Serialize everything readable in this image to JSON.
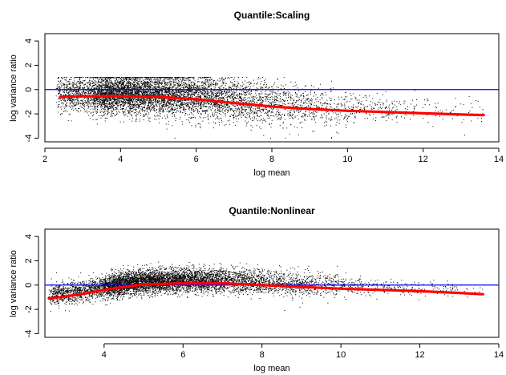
{
  "chart_data": [
    {
      "type": "scatter",
      "title": "Quantile:Scaling",
      "xlabel": "log mean",
      "ylabel": "log variance ratio",
      "xlim": [
        2.0,
        14.0
      ],
      "ylim": [
        -4.3,
        4.6
      ],
      "xticks": [
        2,
        4,
        6,
        8,
        10,
        12,
        14
      ],
      "yticks": [
        -4,
        -2,
        0,
        2,
        4
      ],
      "grid": false,
      "reference_line": {
        "y": 0,
        "color": "#0000ff"
      },
      "point_color": "#000000",
      "point_cloud": {
        "approx_points": 7000,
        "x_range": [
          2.3,
          13.6
        ],
        "density_peak_x": 4.3,
        "center_y": -0.5,
        "spread_y": 0.8,
        "y_max_observed": 1.0,
        "y_min_observed": -4.0
      },
      "trend": {
        "name": "loess fit",
        "color": "#ff0000",
        "x": [
          2.4,
          3.0,
          4.0,
          5.0,
          6.0,
          7.0,
          8.0,
          9.0,
          10.0,
          11.0,
          12.0,
          13.0,
          13.6
        ],
        "y": [
          -0.6,
          -0.55,
          -0.55,
          -0.6,
          -0.8,
          -1.1,
          -1.4,
          -1.6,
          -1.75,
          -1.85,
          -1.95,
          -2.05,
          -2.1
        ]
      }
    },
    {
      "type": "scatter",
      "title": "Quantile:Nonlinear",
      "xlabel": "log mean",
      "ylabel": "log variance ratio",
      "xlim": [
        2.5,
        14.0
      ],
      "ylim": [
        -4.3,
        4.6
      ],
      "xticks": [
        4,
        6,
        8,
        10,
        12,
        14
      ],
      "yticks": [
        -4,
        -2,
        0,
        2,
        4
      ],
      "grid": false,
      "reference_line": {
        "y": 0,
        "color": "#0000ff"
      },
      "point_color": "#000000",
      "point_cloud": {
        "approx_points": 7000,
        "x_range": [
          2.6,
          13.6
        ],
        "density_peak_x": 5.5,
        "center_y": 0.0,
        "spread_y": 0.45,
        "y_max_observed": 1.9,
        "y_min_observed": -3.3
      },
      "trend": {
        "name": "loess fit",
        "color": "#ff0000",
        "x": [
          2.6,
          3.0,
          3.5,
          4.0,
          4.5,
          5.0,
          6.0,
          7.0,
          8.0,
          9.0,
          10.0,
          11.0,
          12.0,
          13.0,
          13.6
        ],
        "y": [
          -1.1,
          -0.95,
          -0.7,
          -0.4,
          -0.15,
          0.05,
          0.15,
          0.15,
          0.0,
          -0.15,
          -0.3,
          -0.4,
          -0.5,
          -0.65,
          -0.75
        ]
      }
    }
  ]
}
